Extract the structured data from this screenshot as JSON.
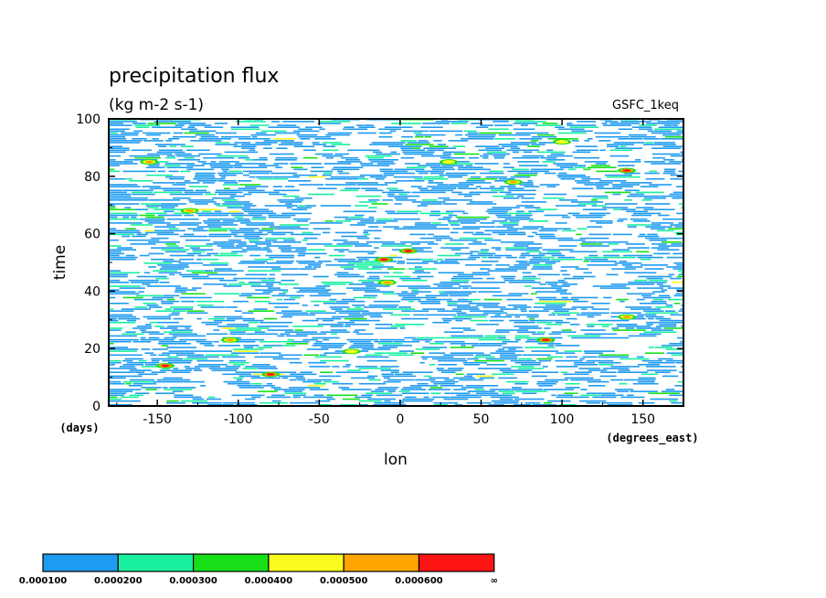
{
  "chart_data": {
    "type": "heatmap",
    "title": "precipitation flux",
    "units": "(kg m-2 s-1)",
    "model": "GSFC_1keq",
    "xlabel": "lon",
    "x_units": "(degrees_east)",
    "ylabel": "time",
    "y_units": "(days)",
    "xlim": [
      -180,
      175
    ],
    "ylim": [
      0,
      100
    ],
    "x_ticks": [
      "-150",
      "-100",
      "-50",
      "0",
      "50",
      "100",
      "150"
    ],
    "y_ticks": [
      "0",
      "20",
      "40",
      "60",
      "80",
      "100"
    ],
    "colorbar": {
      "levels": [
        "0.000100",
        "0.000200",
        "0.000300",
        "0.000400",
        "0.000500",
        "0.000600",
        "∞"
      ],
      "colors": [
        "#1e9bf0",
        "#18f0a0",
        "#18e018",
        "#fafa1e",
        "#ffa500",
        "#ff1414"
      ]
    },
    "hotspots": [
      {
        "lon": 5,
        "time": 54,
        "level": 5
      },
      {
        "lon": -10,
        "time": 51,
        "level": 5
      },
      {
        "lon": -8,
        "time": 43,
        "level": 4
      },
      {
        "lon": -145,
        "time": 14,
        "level": 5
      },
      {
        "lon": -80,
        "time": 11,
        "level": 5
      },
      {
        "lon": -105,
        "time": 23,
        "level": 4
      },
      {
        "lon": 90,
        "time": 23,
        "level": 5
      },
      {
        "lon": 140,
        "time": 31,
        "level": 4
      },
      {
        "lon": 140,
        "time": 82,
        "level": 5
      },
      {
        "lon": 70,
        "time": 78,
        "level": 4
      },
      {
        "lon": -155,
        "time": 85,
        "level": 4
      },
      {
        "lon": -130,
        "time": 68,
        "level": 4
      },
      {
        "lon": 30,
        "time": 85,
        "level": 3
      },
      {
        "lon": -30,
        "time": 19,
        "level": 3
      },
      {
        "lon": 100,
        "time": 92,
        "level": 3
      }
    ]
  }
}
